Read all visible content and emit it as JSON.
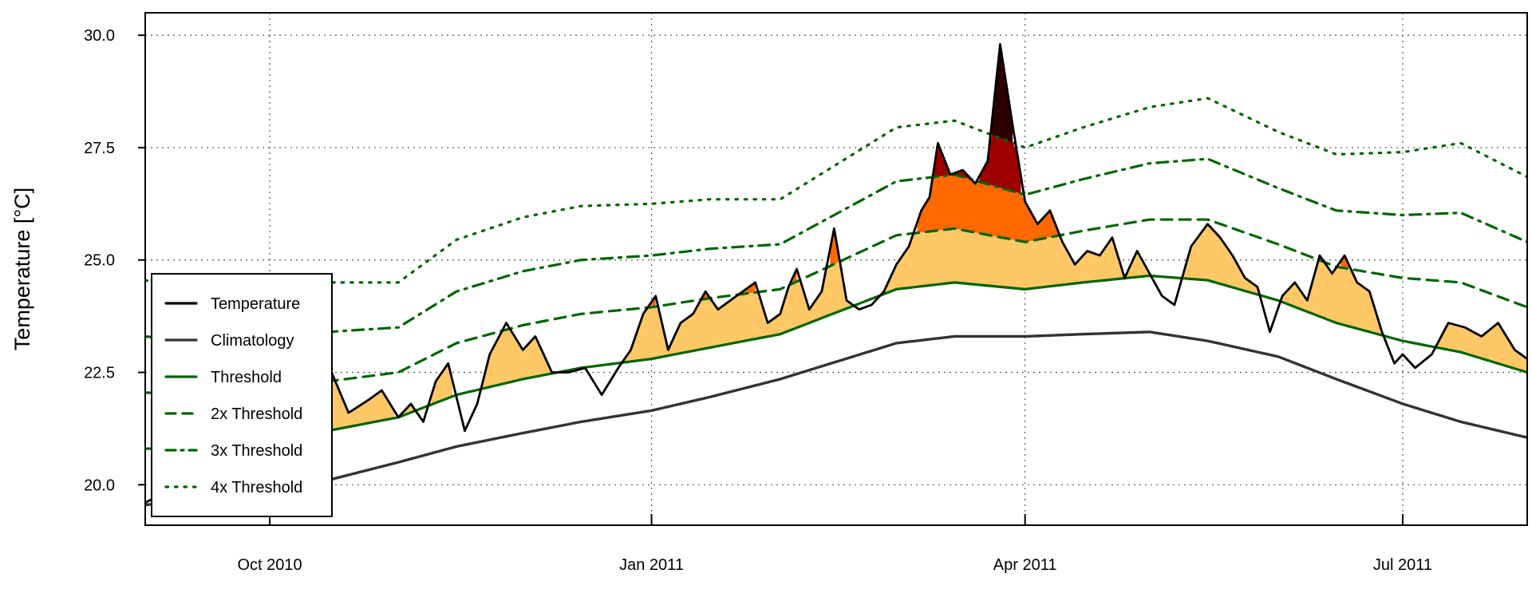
{
  "chart_data": {
    "type": "line",
    "title": "",
    "xlabel": "",
    "ylabel": "Temperature [°C]",
    "x_range": [
      "2010-09-01",
      "2011-07-31"
    ],
    "ylim": [
      19.1,
      30.5
    ],
    "y_ticks": [
      {
        "value": 20.0,
        "label": "20.0"
      },
      {
        "value": 22.5,
        "label": "22.5"
      },
      {
        "value": 25.0,
        "label": "25.0"
      },
      {
        "value": 27.5,
        "label": "27.5"
      },
      {
        "value": 30.0,
        "label": "30.0"
      }
    ],
    "x_ticks": [
      {
        "date": "2010-10-01",
        "label": "Oct 2010"
      },
      {
        "date": "2011-01-01",
        "label": "Jan 2011"
      },
      {
        "date": "2011-04-01",
        "label": "Apr 2011"
      },
      {
        "date": "2011-07-01",
        "label": "Jul 2011"
      }
    ],
    "grid": true,
    "legend_position": "bottom-left",
    "colors": {
      "temperature": "#000000",
      "climatology": "#333333",
      "threshold": "#006400",
      "moderate": "#FFC866",
      "strong": "#FF6900",
      "severe": "#9E0000",
      "extreme": "#2D0000"
    },
    "climatology": {
      "dates": [
        "2010-09-01",
        "2010-09-15",
        "2010-10-01",
        "2010-10-15",
        "2010-11-01",
        "2010-11-15",
        "2010-12-01",
        "2010-12-15",
        "2011-01-01",
        "2011-01-15",
        "2011-02-01",
        "2011-02-15",
        "2011-03-01",
        "2011-03-15",
        "2011-04-01",
        "2011-04-15",
        "2011-05-01",
        "2011-05-15",
        "2011-06-01",
        "2011-06-15",
        "2011-07-01",
        "2011-07-15",
        "2011-07-31"
      ],
      "values": [
        19.55,
        19.7,
        19.85,
        20.1,
        20.5,
        20.85,
        21.15,
        21.4,
        21.65,
        21.95,
        22.35,
        22.75,
        23.15,
        23.3,
        23.3,
        23.35,
        23.4,
        23.2,
        22.85,
        22.35,
        21.8,
        21.4,
        21.05
      ]
    },
    "threshold": {
      "dates": [
        "2010-09-01",
        "2010-09-15",
        "2010-10-01",
        "2010-10-15",
        "2010-11-01",
        "2010-11-15",
        "2010-12-01",
        "2010-12-15",
        "2011-01-01",
        "2011-01-15",
        "2011-02-01",
        "2011-02-15",
        "2011-03-01",
        "2011-03-15",
        "2011-04-01",
        "2011-04-15",
        "2011-05-01",
        "2011-05-15",
        "2011-06-01",
        "2011-06-15",
        "2011-07-01",
        "2011-07-15",
        "2011-07-31"
      ],
      "values": [
        20.8,
        20.85,
        20.9,
        21.2,
        21.5,
        22.0,
        22.35,
        22.6,
        22.8,
        23.05,
        23.35,
        23.85,
        24.35,
        24.5,
        24.35,
        24.5,
        24.65,
        24.55,
        24.1,
        23.6,
        23.2,
        22.95,
        22.5
      ]
    },
    "series": [
      {
        "name": "Temperature",
        "style": "solid",
        "color": "#000000",
        "dates": [
          "2010-09-01",
          "2010-09-05",
          "2010-09-10",
          "2010-09-14",
          "2010-09-18",
          "2010-09-22",
          "2010-09-26",
          "2010-10-01",
          "2010-10-05",
          "2010-10-10",
          "2010-10-15",
          "2010-10-20",
          "2010-10-25",
          "2010-10-28",
          "2010-11-01",
          "2010-11-04",
          "2010-11-07",
          "2010-11-10",
          "2010-11-13",
          "2010-11-17",
          "2010-11-20",
          "2010-11-23",
          "2010-11-27",
          "2010-12-01",
          "2010-12-04",
          "2010-12-08",
          "2010-12-12",
          "2010-12-16",
          "2010-12-20",
          "2010-12-24",
          "2010-12-27",
          "2010-12-30",
          "2011-01-02",
          "2011-01-05",
          "2011-01-08",
          "2011-01-11",
          "2011-01-14",
          "2011-01-17",
          "2011-01-20",
          "2011-01-23",
          "2011-01-26",
          "2011-01-29",
          "2011-02-01",
          "2011-02-03",
          "2011-02-05",
          "2011-02-08",
          "2011-02-11",
          "2011-02-14",
          "2011-02-17",
          "2011-02-20",
          "2011-02-23",
          "2011-02-26",
          "2011-03-01",
          "2011-03-04",
          "2011-03-07",
          "2011-03-09",
          "2011-03-11",
          "2011-03-14",
          "2011-03-17",
          "2011-03-20",
          "2011-03-23",
          "2011-03-26",
          "2011-03-29",
          "2011-04-01",
          "2011-04-04",
          "2011-04-07",
          "2011-04-10",
          "2011-04-13",
          "2011-04-16",
          "2011-04-19",
          "2011-04-22",
          "2011-04-25",
          "2011-04-28",
          "2011-05-01",
          "2011-05-04",
          "2011-05-07",
          "2011-05-11",
          "2011-05-15",
          "2011-05-18",
          "2011-05-21",
          "2011-05-24",
          "2011-05-27",
          "2011-05-30",
          "2011-06-02",
          "2011-06-05",
          "2011-06-08",
          "2011-06-11",
          "2011-06-14",
          "2011-06-17",
          "2011-06-20",
          "2011-06-23",
          "2011-06-26",
          "2011-06-29",
          "2011-07-01",
          "2011-07-04",
          "2011-07-08",
          "2011-07-12",
          "2011-07-16",
          "2011-07-20",
          "2011-07-24",
          "2011-07-28",
          "2011-07-31"
        ],
        "values": [
          19.6,
          19.8,
          20.2,
          19.9,
          20.1,
          20.4,
          20.3,
          20.3,
          21.2,
          21.9,
          22.7,
          21.6,
          21.9,
          22.1,
          21.5,
          21.8,
          21.4,
          22.3,
          22.7,
          21.2,
          21.8,
          22.9,
          23.6,
          23.0,
          23.3,
          22.5,
          22.5,
          22.6,
          22.0,
          22.6,
          23.0,
          23.8,
          24.2,
          23.0,
          23.6,
          23.8,
          24.3,
          23.9,
          24.1,
          24.3,
          24.5,
          23.6,
          23.8,
          24.4,
          24.8,
          23.9,
          24.3,
          25.7,
          24.1,
          23.9,
          24.0,
          24.3,
          24.9,
          25.3,
          26.1,
          26.4,
          27.6,
          26.9,
          27.0,
          26.7,
          27.2,
          29.8,
          28.0,
          26.3,
          25.8,
          26.1,
          25.4,
          24.9,
          25.2,
          25.1,
          25.5,
          24.6,
          25.2,
          24.7,
          24.2,
          24.0,
          25.3,
          25.8,
          25.5,
          25.1,
          24.6,
          24.4,
          23.4,
          24.2,
          24.5,
          24.1,
          25.1,
          24.7,
          25.1,
          24.5,
          24.3,
          23.4,
          22.7,
          22.9,
          22.6,
          22.9,
          23.6,
          23.5,
          23.3,
          23.6,
          23.0,
          22.8
        ]
      }
    ],
    "thresholds": [
      {
        "name": "Threshold",
        "style": "solid",
        "multiple": 1
      },
      {
        "name": "2x Threshold",
        "style": "dashed",
        "multiple": 2
      },
      {
        "name": "3x Threshold",
        "style": "dashdot",
        "multiple": 3
      },
      {
        "name": "4x Threshold",
        "style": "dotted",
        "multiple": 4
      }
    ],
    "legend": [
      {
        "label": "Temperature",
        "style": "solid",
        "color": "#000000"
      },
      {
        "label": "Climatology",
        "style": "solid",
        "color": "#333333"
      },
      {
        "label": "Threshold",
        "style": "solid",
        "color": "#006400"
      },
      {
        "label": "2x Threshold",
        "style": "dashed",
        "color": "#006400"
      },
      {
        "label": "3x Threshold",
        "style": "dashdot",
        "color": "#006400"
      },
      {
        "label": "4x Threshold",
        "style": "dotted",
        "color": "#006400"
      }
    ]
  }
}
